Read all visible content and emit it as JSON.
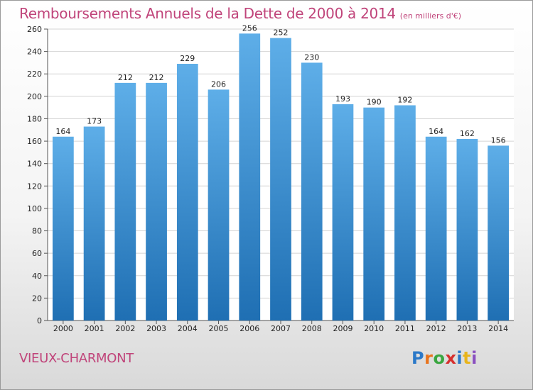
{
  "header": {
    "title": "Remboursements Annuels de la Dette de 2000 à 2014",
    "subtitle": "(en milliers d'€)"
  },
  "footer": {
    "commune": "VIEUX-CHARMONT",
    "logo": "Proxiti"
  },
  "colors": {
    "title": "#c0447a",
    "bar_top": "#5eaee8",
    "bar_bottom": "#1f6fb3",
    "grid": "#d4d4d4",
    "plot_background": "#ffffff"
  },
  "chart_data": {
    "type": "bar",
    "categories": [
      "2000",
      "2001",
      "2002",
      "2003",
      "2004",
      "2005",
      "2006",
      "2007",
      "2008",
      "2009",
      "2010",
      "2011",
      "2012",
      "2013",
      "2014"
    ],
    "values": [
      164,
      173,
      212,
      212,
      229,
      206,
      256,
      252,
      230,
      193,
      190,
      192,
      164,
      162,
      156
    ],
    "ylim": [
      0,
      260
    ],
    "yticks": [
      0,
      20,
      40,
      60,
      80,
      100,
      120,
      140,
      160,
      180,
      200,
      220,
      240,
      260
    ],
    "grid": true,
    "legend": "none"
  }
}
